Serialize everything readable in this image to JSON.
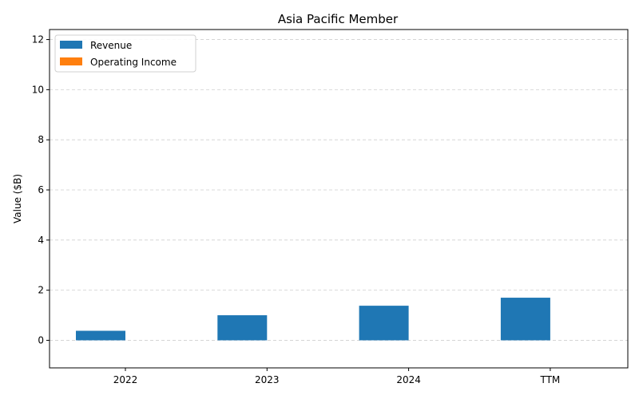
{
  "chart_data": {
    "type": "bar",
    "title": "Asia Pacific Member",
    "xlabel": "",
    "ylabel": "Value ($B)",
    "categories": [
      "2022",
      "2023",
      "2024",
      "TTM"
    ],
    "series": [
      {
        "name": "Revenue",
        "values": [
          0.38,
          1.0,
          1.38,
          1.7
        ],
        "color": "#1f77b4"
      },
      {
        "name": "Operating Income",
        "values": [
          0,
          0,
          0,
          0
        ],
        "color": "#ff7f0e"
      }
    ],
    "ylim": [
      -1.1,
      12.4
    ],
    "yticks": [
      0,
      2,
      4,
      6,
      8,
      10,
      12
    ],
    "grid": "y-dashed",
    "legend": "top-left"
  }
}
